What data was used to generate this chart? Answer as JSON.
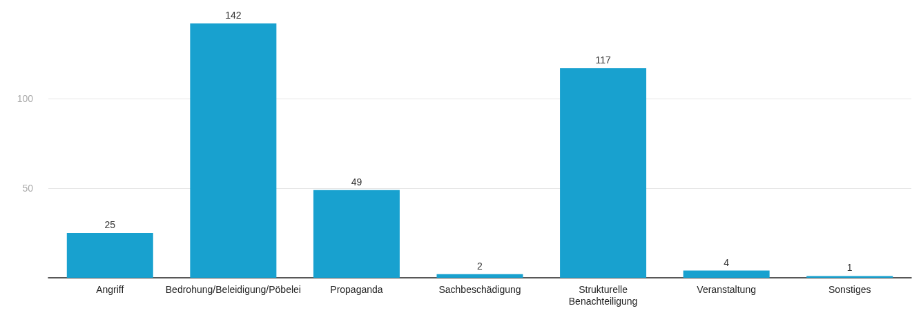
{
  "chart_data": {
    "type": "bar",
    "categories": [
      "Angriff",
      "Bedrohung/Beleidigung/Pöbelei",
      "Propaganda",
      "Sachbeschädigung",
      "Strukturelle\nBenachteiligung",
      "Veranstaltung",
      "Sonstiges"
    ],
    "values": [
      25,
      142,
      49,
      2,
      117,
      4,
      1
    ],
    "color": "#18a1cf",
    "ylim": [
      0,
      142
    ],
    "yticks": [
      {
        "value": 0,
        "label": null
      },
      50,
      100
    ],
    "grid": "y",
    "data_labels": true
  }
}
